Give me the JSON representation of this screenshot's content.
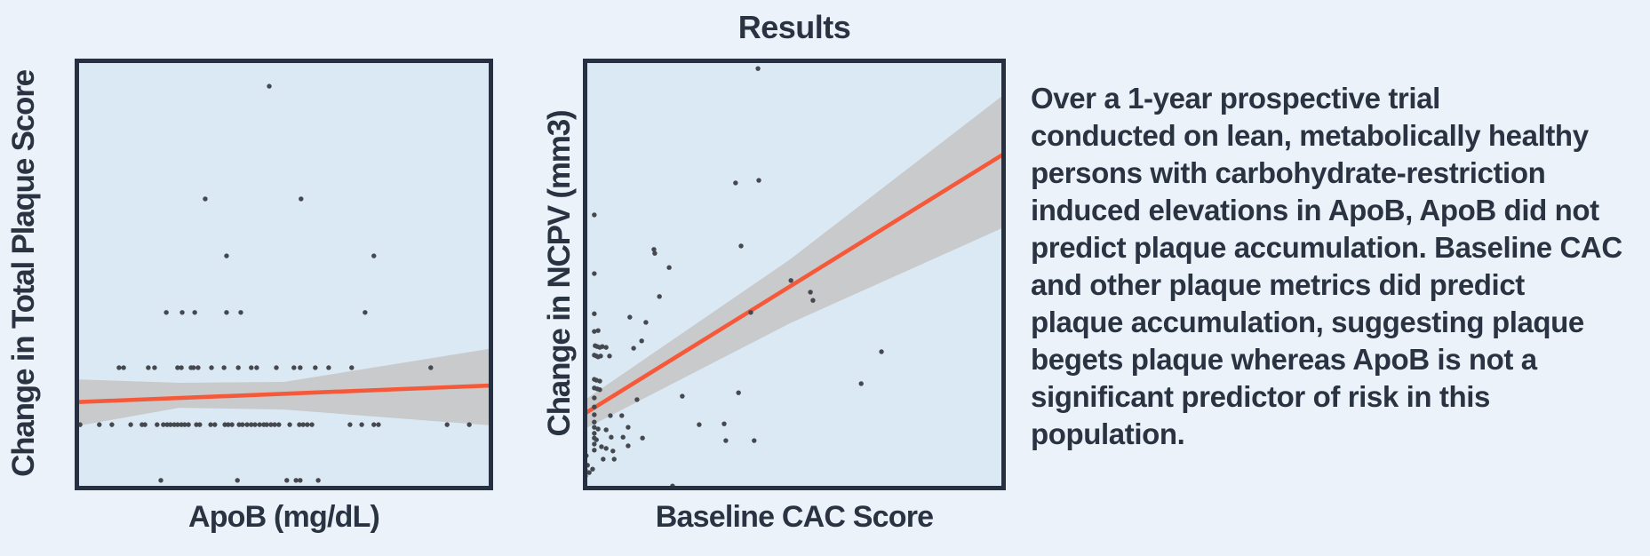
{
  "title": "Results",
  "summary": {
    "lines": [
      "Over a 1-year prospective trial",
      "conducted on lean, metabolically healthy",
      "persons with carbohydrate-restriction",
      "induced elevations in ApoB, ApoB did not",
      "predict plaque accumulation. Baseline CAC",
      "and other plaque metrics did predict",
      "plaque accumulation, suggesting plaque",
      "begets plaque whereas ApoB is not a",
      "significant predictor of risk in this",
      "population."
    ]
  },
  "colors": {
    "page_background": "#ECF2F9",
    "plot_background": "#DBE9F4",
    "plot_border": "#273040",
    "points": "#45494F",
    "regression_line": "#F5593A",
    "confidence_band": "#C9CACB",
    "text": "#2A3342"
  },
  "chart_data": [
    {
      "type": "scatter",
      "title": "",
      "xlabel": "ApoB (mg/dL)",
      "ylabel": "Change in Total Plaque Score",
      "axes_note": "no tick marks or tick labels shown; point coordinates below are fractional positions in the plot area (x: 0=left edge, 1=right edge; y: 0=bottom, 1=top)",
      "grid": false,
      "legend": "none",
      "trend": "flat regression line slightly rising, bowtie-shaped confidence band (narrow at center, wide at both ends)",
      "regression_line": {
        "start": [
          0.0,
          0.204
        ],
        "end": [
          1.0,
          0.243
        ]
      },
      "confidence_band": {
        "top": [
          [
            0.0,
            0.257
          ],
          [
            0.25,
            0.249
          ],
          [
            0.5,
            0.251
          ],
          [
            1.0,
            0.329
          ]
        ],
        "bottom": [
          [
            1.0,
            0.15
          ],
          [
            0.5,
            0.187
          ],
          [
            0.25,
            0.191
          ],
          [
            0.0,
            0.148
          ]
        ]
      },
      "points": [
        [
          0.465,
          0.936
        ],
        [
          0.312,
          0.675
        ],
        [
          0.541,
          0.675
        ],
        [
          0.363,
          0.543
        ],
        [
          0.715,
          0.543
        ],
        [
          0.219,
          0.412
        ],
        [
          0.257,
          0.412
        ],
        [
          0.287,
          0.412
        ],
        [
          0.363,
          0.412
        ],
        [
          0.397,
          0.412
        ],
        [
          0.694,
          0.412
        ],
        [
          0.106,
          0.284
        ],
        [
          0.117,
          0.284
        ],
        [
          0.176,
          0.284
        ],
        [
          0.191,
          0.284
        ],
        [
          0.246,
          0.284
        ],
        [
          0.255,
          0.284
        ],
        [
          0.278,
          0.284
        ],
        [
          0.284,
          0.284
        ],
        [
          0.295,
          0.284
        ],
        [
          0.327,
          0.284
        ],
        [
          0.357,
          0.284
        ],
        [
          0.391,
          0.284
        ],
        [
          0.422,
          0.284
        ],
        [
          0.435,
          0.284
        ],
        [
          0.482,
          0.284
        ],
        [
          0.524,
          0.284
        ],
        [
          0.539,
          0.284
        ],
        [
          0.575,
          0.284
        ],
        [
          0.607,
          0.284
        ],
        [
          0.662,
          0.284
        ],
        [
          0.851,
          0.284
        ],
        [
          0.013,
          0.152
        ],
        [
          0.059,
          0.152
        ],
        [
          0.089,
          0.152
        ],
        [
          0.134,
          0.152
        ],
        [
          0.161,
          0.152
        ],
        [
          0.168,
          0.152
        ],
        [
          0.197,
          0.152
        ],
        [
          0.212,
          0.152
        ],
        [
          0.221,
          0.152
        ],
        [
          0.229,
          0.152
        ],
        [
          0.238,
          0.152
        ],
        [
          0.246,
          0.152
        ],
        [
          0.255,
          0.152
        ],
        [
          0.263,
          0.152
        ],
        [
          0.272,
          0.152
        ],
        [
          0.291,
          0.152
        ],
        [
          0.299,
          0.152
        ],
        [
          0.325,
          0.152
        ],
        [
          0.335,
          0.152
        ],
        [
          0.359,
          0.152
        ],
        [
          0.367,
          0.152
        ],
        [
          0.376,
          0.152
        ],
        [
          0.393,
          0.152
        ],
        [
          0.401,
          0.152
        ],
        [
          0.412,
          0.152
        ],
        [
          0.422,
          0.152
        ],
        [
          0.431,
          0.152
        ],
        [
          0.442,
          0.152
        ],
        [
          0.452,
          0.152
        ],
        [
          0.459,
          0.152
        ],
        [
          0.469,
          0.152
        ],
        [
          0.478,
          0.152
        ],
        [
          0.488,
          0.152
        ],
        [
          0.514,
          0.152
        ],
        [
          0.537,
          0.152
        ],
        [
          0.546,
          0.152
        ],
        [
          0.556,
          0.152
        ],
        [
          0.567,
          0.152
        ],
        [
          0.658,
          0.152
        ],
        [
          0.686,
          0.152
        ],
        [
          0.715,
          0.152
        ],
        [
          0.726,
          0.152
        ],
        [
          0.89,
          0.152
        ],
        [
          0.943,
          0.152
        ],
        [
          0.996,
          0.152
        ],
        [
          0.206,
          0.023
        ],
        [
          0.389,
          0.023
        ],
        [
          0.507,
          0.023
        ],
        [
          0.529,
          0.023
        ],
        [
          0.539,
          0.023
        ],
        [
          0.582,
          0.023
        ]
      ]
    },
    {
      "type": "scatter",
      "title": "",
      "xlabel": "Baseline CAC Score",
      "ylabel": "Change in NCPV (mm3)",
      "axes_note": "no tick marks or tick labels shown; point coordinates below are fractional positions in the plot area (x: 0=left edge, 1=right edge; y: 0=bottom, 1=top)",
      "grid": false,
      "legend": "none",
      "trend": "strong positive regression line, fan-shaped confidence band (narrow at low CAC, wide at high CAC); most points cluster at CAC near 0",
      "regression_line": {
        "start": [
          0.0,
          0.175
        ],
        "end": [
          1.0,
          0.782
        ]
      },
      "confidence_band": {
        "top": [
          [
            0.0,
            0.206
          ],
          [
            0.49,
            0.535
          ],
          [
            1.0,
            0.92
          ]
        ],
        "bottom": [
          [
            1.0,
            0.611
          ],
          [
            0.49,
            0.387
          ],
          [
            0.0,
            0.14
          ]
        ]
      },
      "points": [
        [
          0.414,
          0.977
        ],
        [
          0.998,
          0.844
        ],
        [
          0.361,
          0.712
        ],
        [
          0.416,
          0.718
        ],
        [
          0.027,
          0.638
        ],
        [
          0.374,
          0.566
        ],
        [
          0.168,
          0.558
        ],
        [
          0.17,
          0.549
        ],
        [
          0.204,
          0.516
        ],
        [
          0.027,
          0.502
        ],
        [
          0.492,
          0.486
        ],
        [
          0.538,
          0.459
        ],
        [
          0.544,
          0.44
        ],
        [
          0.181,
          0.449
        ],
        [
          0.397,
          0.412
        ],
        [
          0.027,
          0.409
        ],
        [
          0.111,
          0.401
        ],
        [
          0.149,
          0.389
        ],
        [
          0.027,
          0.368
        ],
        [
          0.036,
          0.37
        ],
        [
          0.139,
          0.346
        ],
        [
          0.12,
          0.329
        ],
        [
          0.029,
          0.335
        ],
        [
          0.034,
          0.333
        ],
        [
          0.04,
          0.331
        ],
        [
          0.046,
          0.333
        ],
        [
          0.055,
          0.331
        ],
        [
          0.027,
          0.313
        ],
        [
          0.032,
          0.311
        ],
        [
          0.036,
          0.309
        ],
        [
          0.042,
          0.311
        ],
        [
          0.063,
          0.311
        ],
        [
          0.706,
          0.321
        ],
        [
          0.658,
          0.247
        ],
        [
          0.027,
          0.257
        ],
        [
          0.032,
          0.255
        ],
        [
          0.04,
          0.253
        ],
        [
          0.027,
          0.237
        ],
        [
          0.034,
          0.235
        ],
        [
          0.04,
          0.233
        ],
        [
          0.027,
          0.214
        ],
        [
          0.128,
          0.21
        ],
        [
          0.235,
          0.218
        ],
        [
          0.368,
          0.226
        ],
        [
          0.027,
          0.193
        ],
        [
          0.092,
          0.173
        ],
        [
          0.065,
          0.173
        ],
        [
          0.027,
          0.175
        ],
        [
          0.027,
          0.158
        ],
        [
          0.036,
          0.142
        ],
        [
          0.027,
          0.146
        ],
        [
          0.055,
          0.14
        ],
        [
          0.107,
          0.146
        ],
        [
          0.275,
          0.152
        ],
        [
          0.334,
          0.154
        ],
        [
          0.027,
          0.132
        ],
        [
          0.027,
          0.121
        ],
        [
          0.067,
          0.123
        ],
        [
          0.095,
          0.123
        ],
        [
          0.141,
          0.121
        ],
        [
          0.032,
          0.117
        ],
        [
          0.338,
          0.115
        ],
        [
          0.405,
          0.115
        ],
        [
          0.027,
          0.107
        ],
        [
          0.044,
          0.101
        ],
        [
          0.055,
          0.097
        ],
        [
          0.107,
          0.103
        ],
        [
          0.027,
          0.093
        ],
        [
          0.071,
          0.091
        ],
        [
          0.004,
          0.088
        ],
        [
          0.008,
          0.08
        ],
        [
          0.074,
          0.072
        ],
        [
          0.048,
          0.072
        ],
        [
          0.004,
          0.068
        ],
        [
          0.011,
          0.058
        ],
        [
          0.023,
          0.049
        ],
        [
          0.006,
          0.047
        ],
        [
          0.015,
          0.041
        ],
        [
          0.006,
          0.033
        ],
        [
          0.212,
          0.01
        ]
      ]
    }
  ]
}
